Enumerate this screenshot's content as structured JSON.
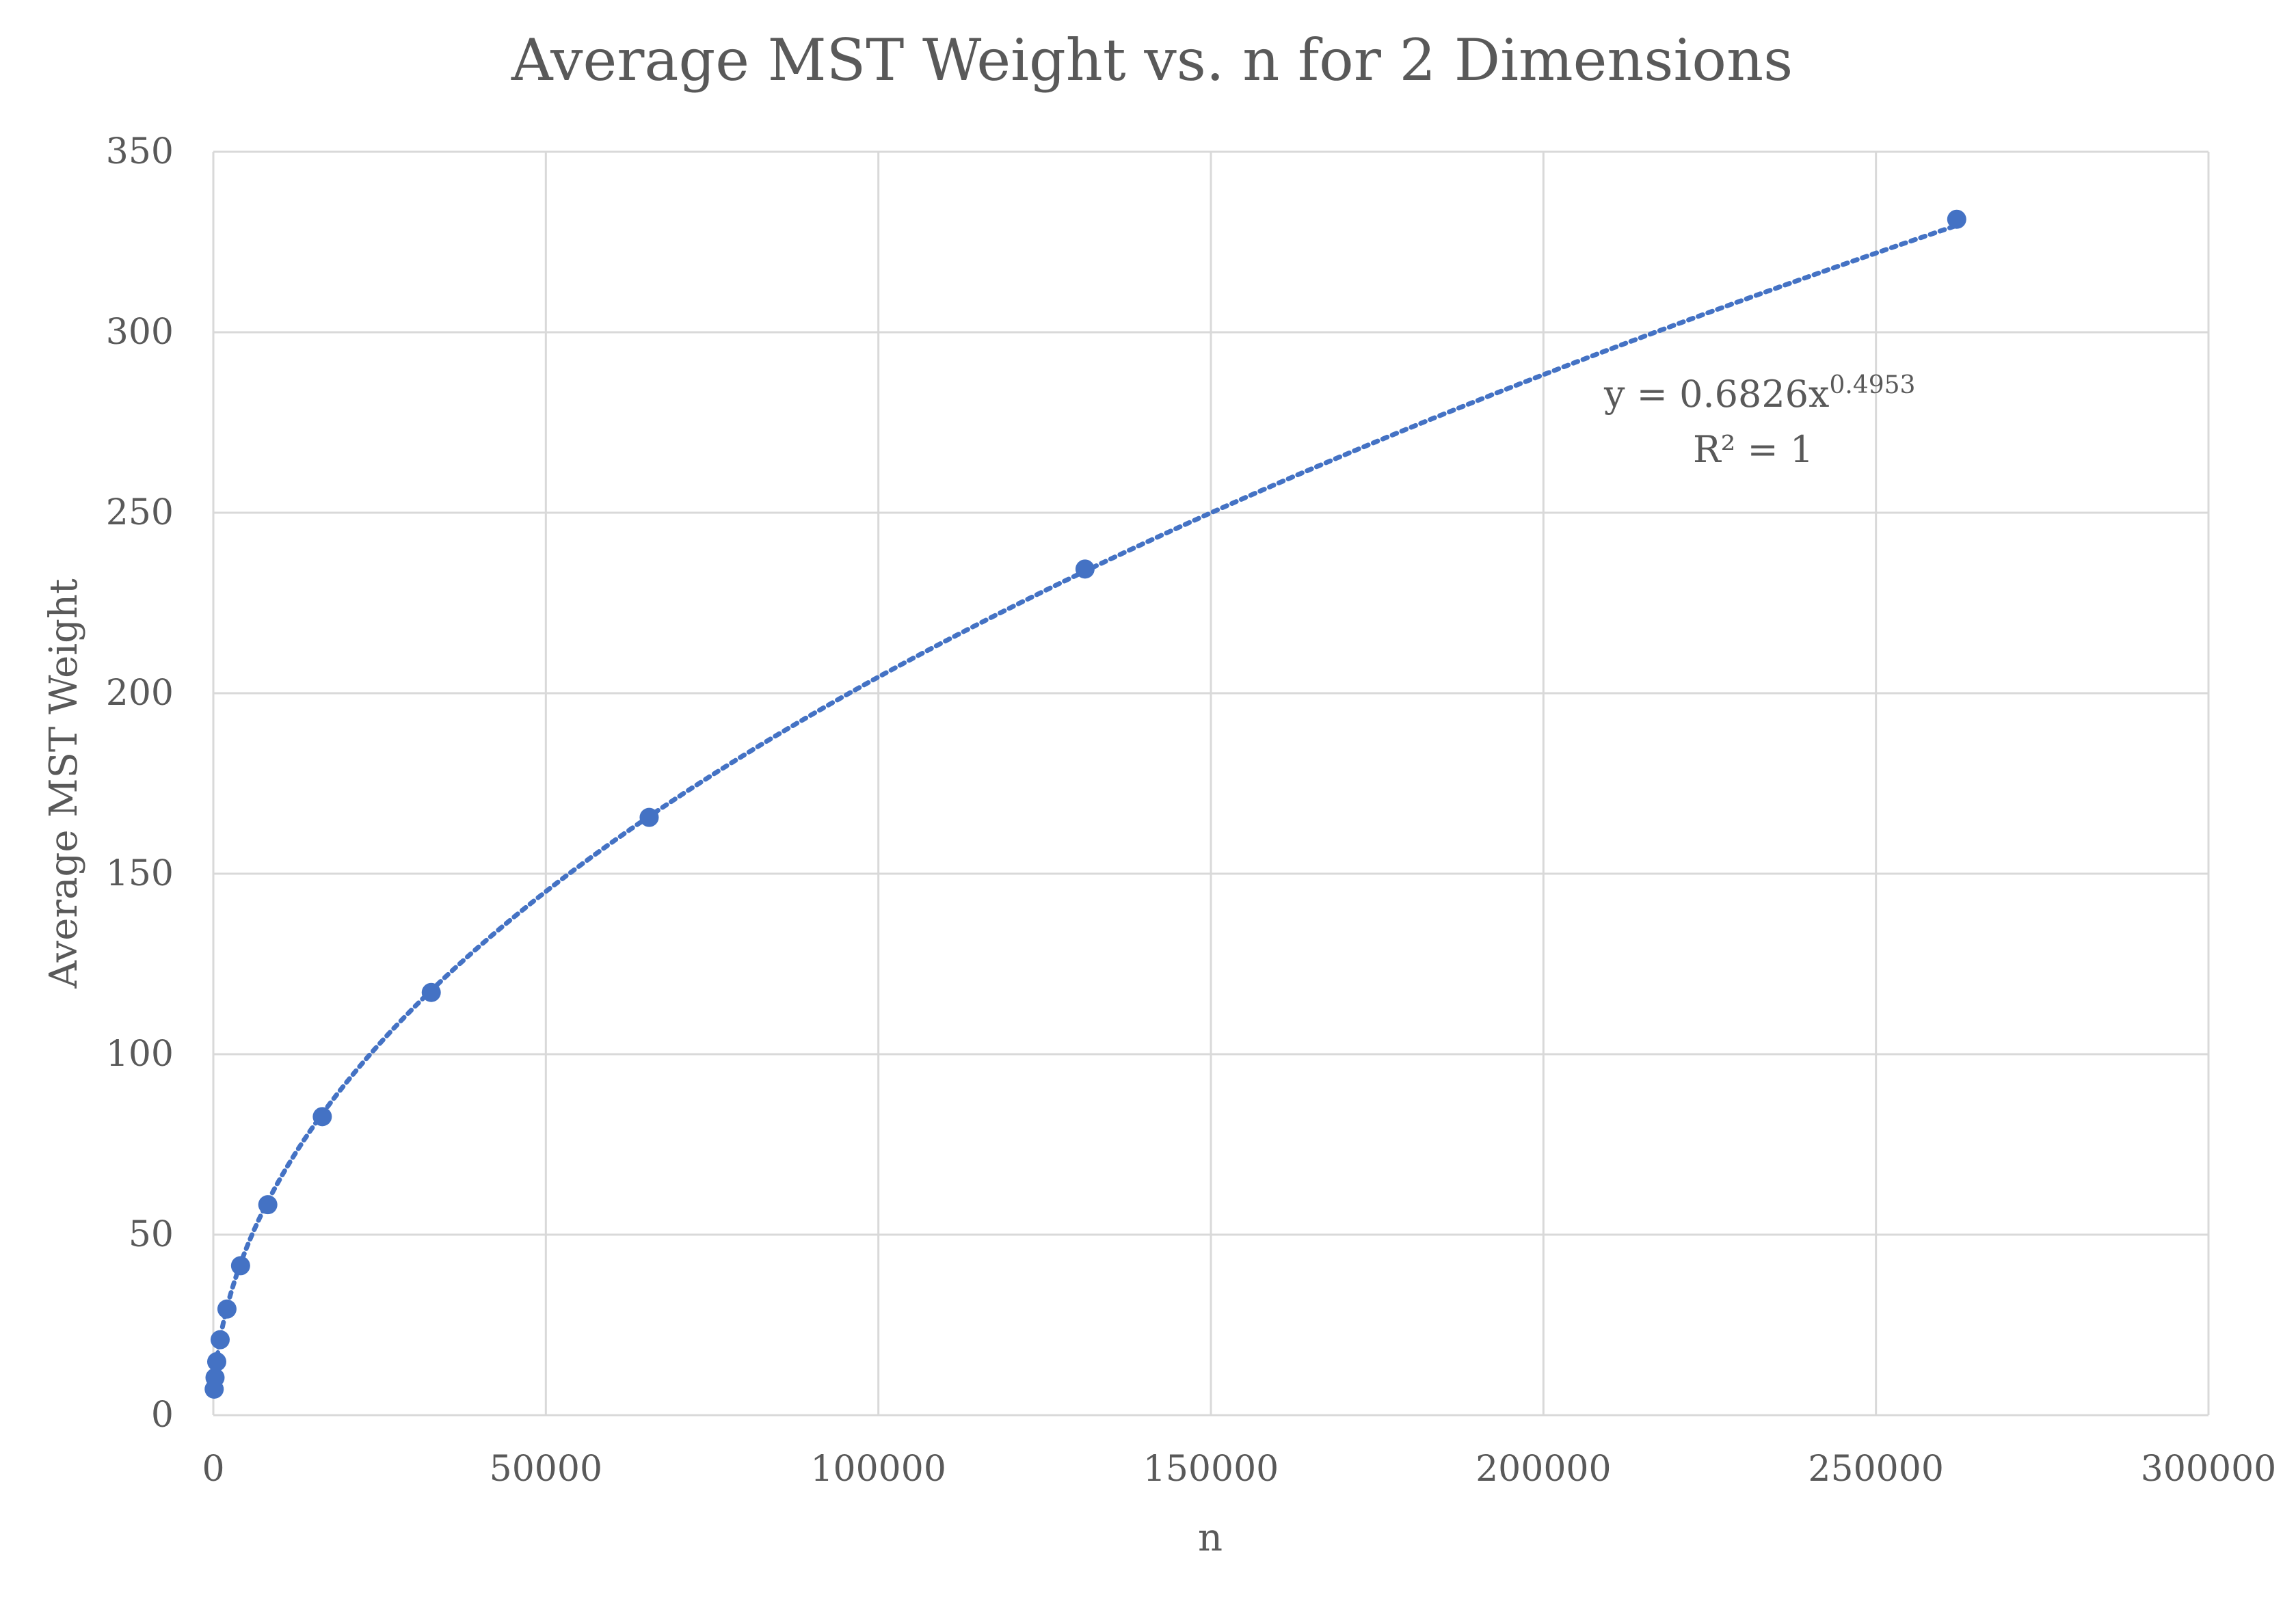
{
  "colors": {
    "series": "#4472C4",
    "grid": "#D9D9D9",
    "text": "#595959",
    "background": "#FFFFFF"
  },
  "chart_data": {
    "type": "scatter",
    "title": "Average MST Weight vs. n for 2 Dimensions",
    "xlabel": "n",
    "ylabel": "Average MST Weight",
    "xlim": [
      0,
      300000
    ],
    "ylim": [
      0,
      350
    ],
    "x_ticks": [
      0,
      50000,
      100000,
      150000,
      200000,
      250000,
      300000
    ],
    "y_ticks": [
      0,
      50,
      100,
      150,
      200,
      250,
      300,
      350
    ],
    "x_tick_labels": [
      "0",
      "50000",
      "100000",
      "150000",
      "200000",
      "250000",
      "300000"
    ],
    "y_tick_labels": [
      "0",
      "50",
      "100",
      "150",
      "200",
      "250",
      "300",
      "350"
    ],
    "grid": true,
    "legend": "none",
    "series": [
      {
        "x": [
          128,
          256,
          512,
          1024,
          2048,
          4096,
          8192,
          16384,
          32768,
          65536,
          131072,
          262144
        ],
        "y": [
          7.2,
          10.4,
          14.8,
          20.9,
          29.4,
          41.4,
          58.3,
          82.7,
          117.1,
          165.6,
          234.4,
          331.3
        ]
      }
    ],
    "trendline": {
      "type": "power",
      "coefficient": 0.6826,
      "exponent": 0.4953,
      "style": "dotted",
      "equation_prefix": "y = 0.6826x",
      "equation_exponent": "0.4953",
      "r2_label": "R² = 1"
    }
  }
}
